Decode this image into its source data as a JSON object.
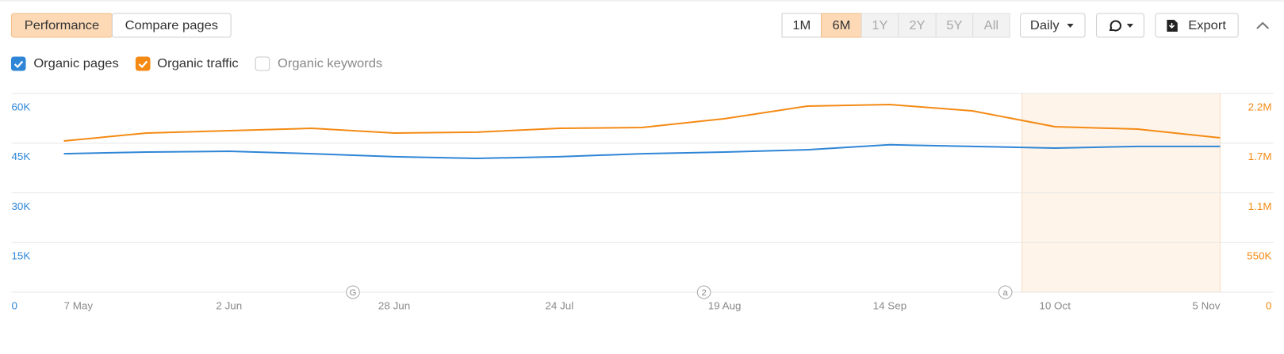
{
  "toolbar": {
    "tabs": [
      {
        "label": "Performance",
        "state": "active"
      },
      {
        "label": "Compare pages",
        "state": "normal"
      }
    ],
    "periods": [
      {
        "label": "1M",
        "state": "normal"
      },
      {
        "label": "6M",
        "state": "active"
      },
      {
        "label": "1Y",
        "state": "disabled"
      },
      {
        "label": "2Y",
        "state": "disabled"
      },
      {
        "label": "5Y",
        "state": "disabled"
      },
      {
        "label": "All",
        "state": "disabled"
      }
    ],
    "interval": "Daily",
    "export": "Export"
  },
  "chart_data": {
    "type": "line",
    "categories": [
      "7 May",
      null,
      "2 Jun",
      null,
      "28 Jun",
      null,
      "24 Jul",
      null,
      "19 Aug",
      null,
      "14 Sep",
      null,
      "10 Oct",
      null,
      "5 Nov"
    ],
    "series": [
      {
        "name": "Organic pages",
        "color": "#2f86d6",
        "axis": "y",
        "values": [
          41800,
          42300,
          42550,
          41800,
          40900,
          40400,
          40900,
          41800,
          42300,
          43000,
          44500,
          44000,
          43500,
          44000,
          44000
        ]
      },
      {
        "name": "Organic traffic",
        "color": "#f48a14",
        "axis": "y2",
        "values": [
          1674000,
          1762000,
          1788000,
          1814000,
          1762000,
          1771000,
          1814000,
          1823000,
          1920000,
          2060000,
          2077000,
          2007000,
          1832000,
          1806000,
          1709000
        ]
      }
    ],
    "hidden_series": [
      {
        "name": "Organic keywords"
      }
    ],
    "ylim": [
      0,
      60000
    ],
    "yticks": [
      0,
      {
        "value": 15000,
        "label": "15K"
      },
      {
        "value": 30000,
        "label": "30K"
      },
      {
        "value": 45000,
        "label": "45K"
      },
      {
        "value": 60000,
        "label": "60K"
      }
    ],
    "y2lim": [
      0,
      2200000
    ],
    "y2ticks": [
      0,
      {
        "value": 550000,
        "label": "550K"
      },
      {
        "value": 1100000,
        "label": "1.1M"
      },
      {
        "value": 1650000,
        "label": "1.7M"
      },
      {
        "value": 2200000,
        "label": "2.2M"
      }
    ],
    "grid": true,
    "shaded_range": [
      11.6,
      14
    ],
    "annotations": [
      {
        "label": "G",
        "x": 3.5
      },
      {
        "label": "2",
        "x": 7.75
      },
      {
        "label": "a",
        "x": 11.4
      }
    ]
  }
}
